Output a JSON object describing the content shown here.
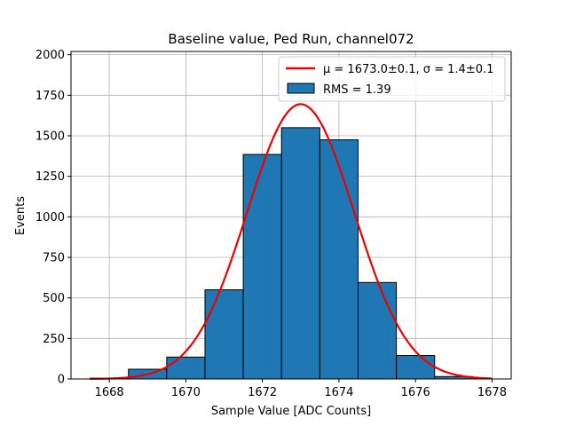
{
  "chart_data": {
    "type": "bar",
    "title": "Baseline value, Ped Run, channel072",
    "xlabel": "Sample Value [ADC Counts]",
    "ylabel": "Events",
    "xlim": [
      1667.0,
      1678.5
    ],
    "ylim": [
      0,
      2020
    ],
    "x_ticks": [
      1668,
      1670,
      1672,
      1674,
      1676,
      1678
    ],
    "y_ticks": [
      0,
      250,
      500,
      750,
      1000,
      1250,
      1500,
      1750,
      2000
    ],
    "grid": true,
    "legend_position": "top-right",
    "bins": [
      {
        "left": 1667.5,
        "right": 1668.5,
        "count": 5
      },
      {
        "left": 1668.5,
        "right": 1669.5,
        "count": 60
      },
      {
        "left": 1669.5,
        "right": 1670.5,
        "count": 135
      },
      {
        "left": 1670.5,
        "right": 1671.5,
        "count": 550
      },
      {
        "left": 1671.5,
        "right": 1672.5,
        "count": 1385
      },
      {
        "left": 1672.5,
        "right": 1673.5,
        "count": 1550
      },
      {
        "left": 1673.5,
        "right": 1674.5,
        "count": 1475
      },
      {
        "left": 1674.5,
        "right": 1675.5,
        "count": 595
      },
      {
        "left": 1675.5,
        "right": 1676.5,
        "count": 145
      },
      {
        "left": 1676.5,
        "right": 1677.5,
        "count": 15
      }
    ],
    "fit": {
      "mu": 1673.0,
      "sigma": 1.4,
      "amplitude": 1695,
      "x_range": [
        1667.5,
        1678.0
      ]
    },
    "legend": [
      {
        "label": "μ = 1673.0±0.1, σ = 1.4±0.1",
        "kind": "line",
        "color": "#ee0000"
      },
      {
        "label": "RMS = 1.39",
        "kind": "patch",
        "color": "#1f77b4"
      }
    ],
    "colors": {
      "bar_fill": "#1f77b4",
      "bar_edge": "#000000",
      "fit_line": "#ee0000",
      "grid": "#b0b0b0"
    }
  }
}
